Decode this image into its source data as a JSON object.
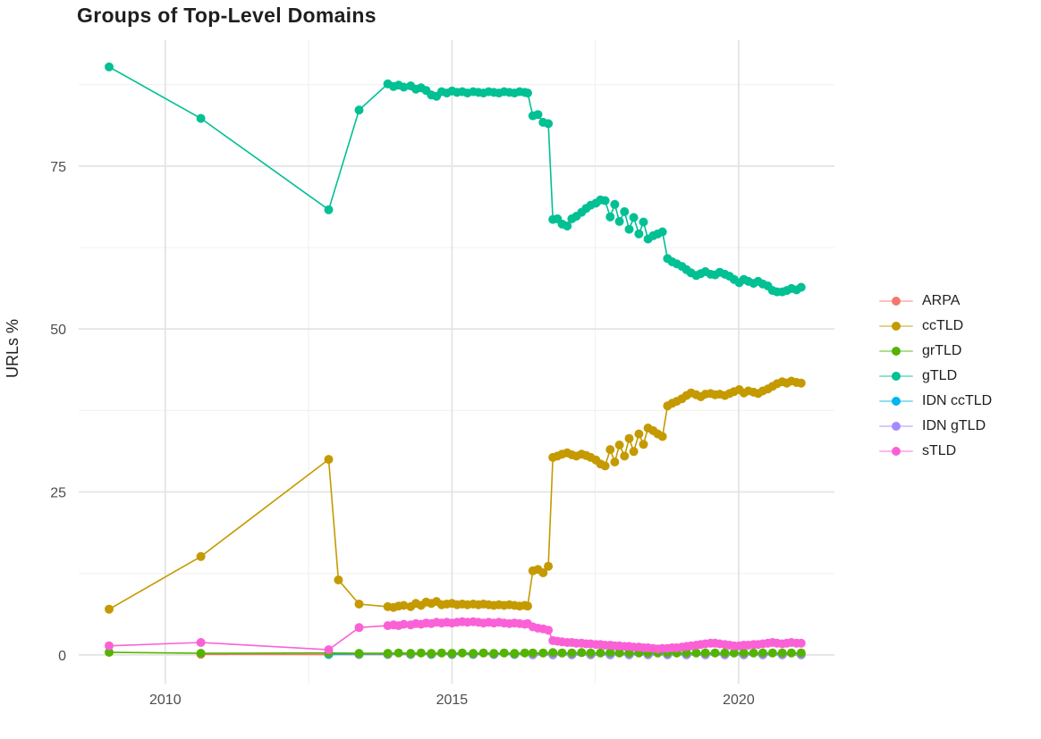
{
  "title": "Groups of Top-Level Domains",
  "axes": {
    "y_label": "URLs %",
    "y_tick_labels": [
      "0",
      "25",
      "50",
      "75"
    ],
    "x_tick_labels": [
      "2010",
      "2015",
      "2020"
    ]
  },
  "legend": {
    "labels": [
      "ARPA",
      "ccTLD",
      "grTLD",
      "gTLD",
      "IDN ccTLD",
      "IDN gTLD",
      "sTLD"
    ]
  },
  "chart_data": {
    "type": "line",
    "marker": "circle",
    "title": "Groups of Top-Level Domains",
    "xlabel": "",
    "ylabel": "URLs %",
    "grid": true,
    "legend_position": "right",
    "x_axis": {
      "ticks": [
        2010,
        2015,
        2020
      ],
      "minor_ticks": [
        2012.5,
        2017.5
      ],
      "range": [
        2008.49,
        2021.67
      ]
    },
    "y_axis": {
      "ticks": [
        0,
        25,
        50,
        75
      ],
      "minor_ticks": [
        12.5,
        37.5,
        62.5,
        87.5
      ],
      "range": [
        -4.4,
        94.3
      ]
    },
    "series": [
      {
        "name": "ARPA",
        "color": "#F8766D",
        "x": [
          2010.62,
          2012.85,
          2013.38,
          2013.88,
          2014.28,
          2014.64,
          2015.0,
          2015.37,
          2015.73,
          2016.09,
          2016.41,
          2016.76,
          2017.09,
          2017.42,
          2017.76,
          2018.09,
          2018.42,
          2018.76,
          2019.09,
          2019.42,
          2019.76,
          2020.09,
          2020.42,
          2020.76,
          2021.09
        ],
        "y": [
          0.1,
          0.05,
          0.05,
          0.05,
          0.05,
          0.05,
          0.05,
          0.05,
          0.05,
          0.05,
          0.05,
          0.05,
          0.05,
          0.05,
          0.05,
          0.05,
          0.05,
          0.05,
          0.05,
          0.05,
          0.05,
          0.05,
          0.05,
          0.05,
          0.05
        ]
      },
      {
        "name": "ccTLD",
        "color": "#C49A00",
        "x": [
          2009.02,
          2010.62,
          2012.85,
          2013.02,
          2013.38,
          2013.88,
          2013.98,
          2014.07,
          2014.16,
          2014.28,
          2014.37,
          2014.46,
          2014.55,
          2014.64,
          2014.73,
          2014.82,
          2014.91,
          2015.0,
          2015.09,
          2015.18,
          2015.27,
          2015.37,
          2015.46,
          2015.55,
          2015.64,
          2015.73,
          2015.82,
          2015.91,
          2016.0,
          2016.09,
          2016.18,
          2016.27,
          2016.32,
          2016.41,
          2016.5,
          2016.59,
          2016.68,
          2016.76,
          2016.84,
          2016.92,
          2017.01,
          2017.09,
          2017.17,
          2017.26,
          2017.34,
          2017.42,
          2017.51,
          2017.59,
          2017.67,
          2017.76,
          2017.84,
          2017.92,
          2018.01,
          2018.09,
          2018.17,
          2018.26,
          2018.34,
          2018.42,
          2018.51,
          2018.59,
          2018.67,
          2018.76,
          2018.84,
          2018.92,
          2019.01,
          2019.09,
          2019.17,
          2019.26,
          2019.34,
          2019.42,
          2019.51,
          2019.59,
          2019.67,
          2019.76,
          2019.84,
          2019.92,
          2020.01,
          2020.09,
          2020.17,
          2020.26,
          2020.34,
          2020.42,
          2020.51,
          2020.59,
          2020.67,
          2020.76,
          2020.84,
          2020.92,
          2021.01,
          2021.09
        ],
        "y": [
          7.0,
          15.1,
          30.0,
          11.5,
          7.8,
          7.4,
          7.3,
          7.5,
          7.6,
          7.4,
          7.9,
          7.6,
          8.1,
          7.9,
          8.2,
          7.7,
          7.8,
          7.9,
          7.7,
          7.8,
          7.7,
          7.8,
          7.7,
          7.8,
          7.7,
          7.6,
          7.7,
          7.6,
          7.7,
          7.6,
          7.5,
          7.6,
          7.5,
          12.9,
          13.1,
          12.6,
          13.6,
          30.3,
          30.5,
          30.8,
          31.0,
          30.7,
          30.5,
          30.8,
          30.6,
          30.3,
          29.9,
          29.3,
          29.0,
          31.5,
          29.6,
          32.2,
          30.5,
          33.2,
          31.2,
          33.9,
          32.3,
          34.8,
          34.4,
          33.9,
          33.5,
          38.2,
          38.6,
          38.9,
          39.3,
          39.8,
          40.2,
          39.9,
          39.6,
          40.0,
          40.1,
          39.9,
          40.0,
          39.8,
          40.1,
          40.4,
          40.7,
          40.2,
          40.5,
          40.3,
          40.1,
          40.5,
          40.8,
          41.2,
          41.6,
          41.9,
          41.7,
          42.0,
          41.8,
          41.7
        ]
      },
      {
        "name": "grTLD",
        "color": "#53B400",
        "x": [
          2009.02,
          2010.62,
          2012.85,
          2013.38,
          2013.88,
          2014.07,
          2014.28,
          2014.46,
          2014.64,
          2014.82,
          2015.0,
          2015.18,
          2015.37,
          2015.55,
          2015.73,
          2015.91,
          2016.09,
          2016.27,
          2016.41,
          2016.59,
          2016.76,
          2016.92,
          2017.09,
          2017.26,
          2017.42,
          2017.59,
          2017.76,
          2017.92,
          2018.09,
          2018.26,
          2018.42,
          2018.59,
          2018.76,
          2018.92,
          2019.09,
          2019.26,
          2019.42,
          2019.59,
          2019.76,
          2019.92,
          2020.09,
          2020.26,
          2020.42,
          2020.59,
          2020.76,
          2020.92,
          2021.09
        ],
        "y": [
          0.4,
          0.25,
          0.3,
          0.25,
          0.25,
          0.3,
          0.25,
          0.3,
          0.25,
          0.3,
          0.25,
          0.3,
          0.25,
          0.3,
          0.25,
          0.3,
          0.25,
          0.3,
          0.3,
          0.3,
          0.35,
          0.3,
          0.3,
          0.35,
          0.3,
          0.3,
          0.35,
          0.3,
          0.3,
          0.3,
          0.3,
          0.3,
          0.3,
          0.3,
          0.3,
          0.3,
          0.3,
          0.3,
          0.3,
          0.3,
          0.3,
          0.3,
          0.3,
          0.3,
          0.3,
          0.3,
          0.3
        ]
      },
      {
        "name": "gTLD",
        "color": "#00C094",
        "x": [
          2009.02,
          2010.62,
          2012.85,
          2013.38,
          2013.88,
          2013.98,
          2014.07,
          2014.16,
          2014.28,
          2014.37,
          2014.46,
          2014.55,
          2014.64,
          2014.73,
          2014.82,
          2014.91,
          2015.0,
          2015.09,
          2015.18,
          2015.27,
          2015.37,
          2015.46,
          2015.55,
          2015.64,
          2015.73,
          2015.82,
          2015.91,
          2016.0,
          2016.09,
          2016.18,
          2016.27,
          2016.32,
          2016.41,
          2016.5,
          2016.59,
          2016.68,
          2016.76,
          2016.84,
          2016.92,
          2017.01,
          2017.09,
          2017.17,
          2017.26,
          2017.34,
          2017.42,
          2017.51,
          2017.59,
          2017.67,
          2017.76,
          2017.84,
          2017.92,
          2018.01,
          2018.09,
          2018.17,
          2018.26,
          2018.34,
          2018.42,
          2018.51,
          2018.59,
          2018.67,
          2018.76,
          2018.84,
          2018.92,
          2019.01,
          2019.09,
          2019.17,
          2019.26,
          2019.34,
          2019.42,
          2019.51,
          2019.59,
          2019.67,
          2019.76,
          2019.84,
          2019.92,
          2020.01,
          2020.09,
          2020.17,
          2020.26,
          2020.34,
          2020.42,
          2020.51,
          2020.59,
          2020.67,
          2020.76,
          2020.84,
          2020.92,
          2021.01,
          2021.09
        ],
        "y": [
          90.2,
          82.3,
          68.3,
          83.6,
          87.6,
          87.2,
          87.4,
          87.1,
          87.3,
          86.8,
          87.0,
          86.6,
          85.9,
          85.7,
          86.4,
          86.2,
          86.5,
          86.3,
          86.4,
          86.2,
          86.4,
          86.3,
          86.2,
          86.4,
          86.3,
          86.2,
          86.4,
          86.3,
          86.2,
          86.4,
          86.3,
          86.2,
          82.7,
          82.9,
          81.7,
          81.5,
          66.8,
          66.9,
          66.1,
          65.8,
          66.9,
          67.3,
          67.9,
          68.5,
          69.0,
          69.3,
          69.8,
          69.7,
          67.2,
          69.1,
          66.5,
          68.0,
          65.3,
          67.1,
          64.6,
          66.4,
          63.8,
          64.3,
          64.6,
          64.9,
          60.8,
          60.3,
          60.0,
          59.6,
          59.1,
          58.6,
          58.2,
          58.5,
          58.8,
          58.4,
          58.3,
          58.7,
          58.4,
          58.1,
          57.6,
          57.1,
          57.6,
          57.3,
          57.0,
          57.3,
          56.9,
          56.6,
          55.9,
          55.7,
          55.7,
          55.9,
          56.2,
          56.0,
          56.4
        ]
      },
      {
        "name": "IDN ccTLD",
        "color": "#00B6EB",
        "x": [
          2012.85,
          2013.38,
          2013.88,
          2014.28,
          2014.64,
          2015.0,
          2015.37,
          2015.73,
          2016.09,
          2016.41,
          2016.76,
          2017.09,
          2017.42,
          2017.76,
          2018.09,
          2018.42,
          2018.76,
          2019.09,
          2019.42,
          2019.76,
          2020.09,
          2020.42,
          2020.76,
          2021.09
        ],
        "y": [
          0.1,
          0.15,
          0.15,
          0.15,
          0.15,
          0.15,
          0.15,
          0.15,
          0.15,
          0.15,
          0.15,
          0.15,
          0.15,
          0.15,
          0.15,
          0.15,
          0.15,
          0.15,
          0.15,
          0.15,
          0.15,
          0.15,
          0.15,
          0.15
        ]
      },
      {
        "name": "IDN gTLD",
        "color": "#A58AFF",
        "x": [
          2016.41,
          2016.76,
          2017.09,
          2017.42,
          2017.76,
          2018.09,
          2018.42,
          2018.76,
          2019.09,
          2019.42,
          2019.76,
          2020.09,
          2020.42,
          2020.76,
          2021.09
        ],
        "y": [
          0.0,
          0.0,
          0.0,
          0.0,
          0.0,
          0.0,
          0.0,
          0.0,
          0.0,
          0.0,
          0.0,
          0.0,
          0.0,
          0.0,
          0.0
        ]
      },
      {
        "name": "sTLD",
        "color": "#FB61D7",
        "x": [
          2009.02,
          2010.62,
          2012.85,
          2013.38,
          2013.88,
          2013.98,
          2014.07,
          2014.16,
          2014.28,
          2014.37,
          2014.46,
          2014.55,
          2014.64,
          2014.73,
          2014.82,
          2014.91,
          2015.0,
          2015.09,
          2015.18,
          2015.27,
          2015.37,
          2015.46,
          2015.55,
          2015.64,
          2015.73,
          2015.82,
          2015.91,
          2016.0,
          2016.09,
          2016.18,
          2016.27,
          2016.32,
          2016.41,
          2016.5,
          2016.59,
          2016.68,
          2016.76,
          2016.84,
          2016.92,
          2017.01,
          2017.09,
          2017.17,
          2017.26,
          2017.34,
          2017.42,
          2017.51,
          2017.59,
          2017.67,
          2017.76,
          2017.84,
          2017.92,
          2018.01,
          2018.09,
          2018.17,
          2018.26,
          2018.34,
          2018.42,
          2018.51,
          2018.59,
          2018.67,
          2018.76,
          2018.84,
          2018.92,
          2019.01,
          2019.09,
          2019.17,
          2019.26,
          2019.34,
          2019.42,
          2019.51,
          2019.59,
          2019.67,
          2019.76,
          2019.84,
          2019.92,
          2020.01,
          2020.09,
          2020.17,
          2020.26,
          2020.34,
          2020.42,
          2020.51,
          2020.59,
          2020.67,
          2020.76,
          2020.84,
          2020.92,
          2021.01,
          2021.09
        ],
        "y": [
          1.4,
          1.9,
          0.8,
          4.2,
          4.5,
          4.6,
          4.5,
          4.7,
          4.6,
          4.8,
          4.7,
          4.9,
          4.8,
          5.0,
          4.9,
          5.0,
          4.9,
          5.0,
          5.1,
          5.0,
          5.1,
          5.0,
          4.9,
          5.0,
          4.9,
          5.0,
          4.9,
          4.8,
          4.9,
          4.8,
          4.7,
          4.8,
          4.3,
          4.1,
          4.0,
          3.8,
          2.2,
          2.1,
          2.0,
          1.9,
          1.9,
          1.8,
          1.8,
          1.7,
          1.7,
          1.6,
          1.6,
          1.5,
          1.5,
          1.4,
          1.4,
          1.3,
          1.3,
          1.2,
          1.2,
          1.1,
          1.1,
          1.0,
          0.9,
          1.0,
          1.0,
          1.1,
          1.1,
          1.2,
          1.3,
          1.4,
          1.5,
          1.6,
          1.7,
          1.8,
          1.8,
          1.7,
          1.6,
          1.5,
          1.4,
          1.4,
          1.5,
          1.5,
          1.6,
          1.6,
          1.7,
          1.8,
          1.9,
          1.8,
          1.7,
          1.8,
          1.9,
          1.8,
          1.8
        ]
      }
    ]
  }
}
